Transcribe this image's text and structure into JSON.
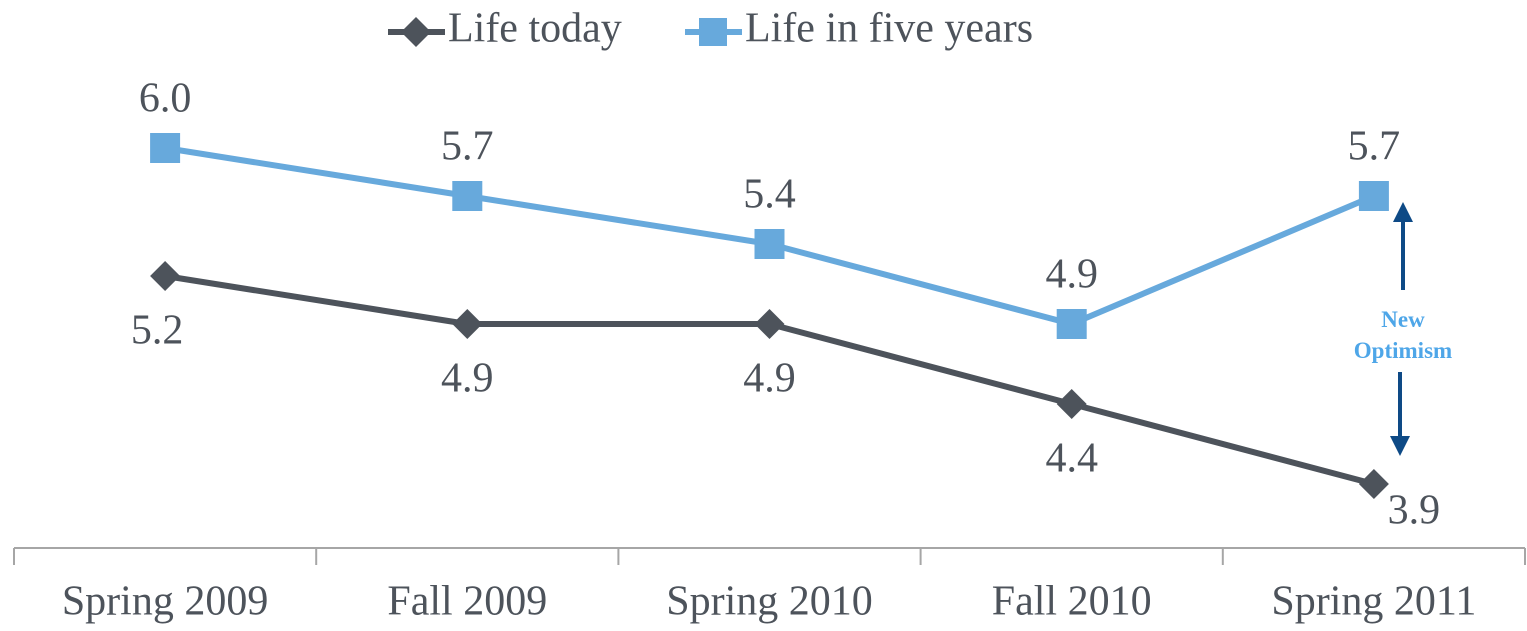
{
  "chart_data": {
    "type": "line",
    "categories": [
      "Spring 2009",
      "Fall 2009",
      "Spring 2010",
      "Fall 2010",
      "Spring 2011"
    ],
    "series": [
      {
        "name": "Life today",
        "color": "#4d535b",
        "marker": "diamond",
        "values": [
          5.2,
          4.9,
          4.9,
          4.4,
          3.9
        ],
        "value_labels": [
          "5.2",
          "4.9",
          "4.9",
          "4.4",
          "3.9"
        ]
      },
      {
        "name": "Life in five years",
        "color": "#67a9dc",
        "marker": "square",
        "values": [
          6.0,
          5.7,
          5.4,
          4.9,
          5.7
        ],
        "value_labels": [
          "6.0",
          "5.7",
          "5.4",
          "4.9",
          "5.7"
        ]
      }
    ],
    "ylim": [
      3.5,
      6.5
    ],
    "legend": "top",
    "annotation": "New Optimism"
  }
}
